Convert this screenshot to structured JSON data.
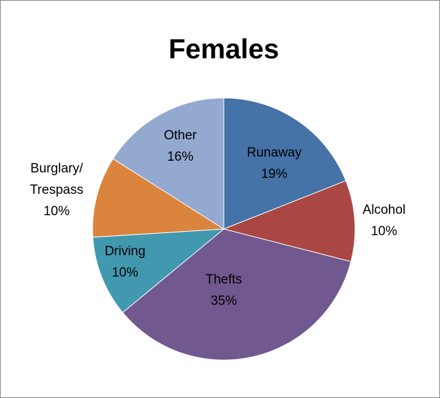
{
  "chart_data": {
    "type": "pie",
    "title": "Females",
    "categories": [
      "Runaway",
      "Alcohol",
      "Thefts",
      "Driving",
      "Burglary/\nTrespass",
      "Other"
    ],
    "values": [
      19,
      10,
      35,
      10,
      10,
      16
    ],
    "value_labels": [
      "19%",
      "10%",
      "35%",
      "10%",
      "10%",
      "16%"
    ],
    "colors": [
      "#4572a7",
      "#aa4643",
      "#71588f",
      "#4198af",
      "#db843d",
      "#93a9cf"
    ]
  }
}
